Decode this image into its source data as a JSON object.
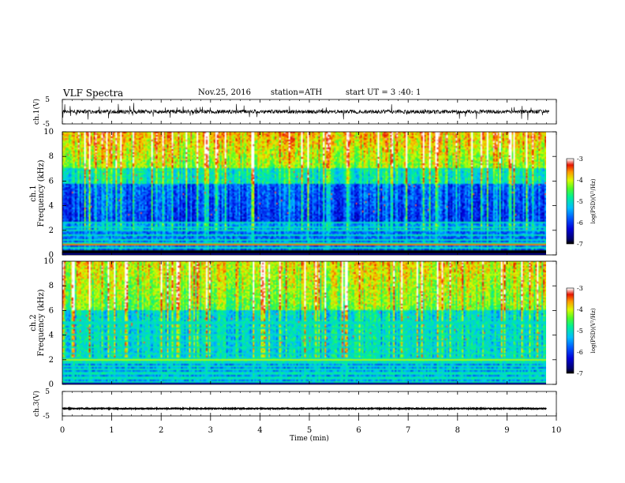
{
  "header": {
    "title": "VLF  Spectra",
    "date": "Nov.25, 2016",
    "station": "station=ATH",
    "start": "start  UT  =    3  :40: 1"
  },
  "chart_data": [
    {
      "type": "line",
      "name": "ch1-waveform",
      "ylabel": "ch.1(V)",
      "ylim": [
        -5,
        5
      ],
      "yticks": [
        "5",
        "-5"
      ],
      "xlim": [
        0,
        10
      ],
      "baseline": 0
    },
    {
      "type": "heatmap",
      "name": "ch1-spectrogram",
      "ylabel": "ch.1\nFrequency (kHz)",
      "ylabel_lines": [
        "ch.1",
        "Frequency (kHz)"
      ],
      "ylim": [
        0,
        10
      ],
      "yticks": [
        "0",
        "2",
        "4",
        "6",
        "8",
        "10"
      ],
      "xlim": [
        0,
        9.8
      ],
      "colorbar": {
        "label": "log(PSD)(V²/Hz)",
        "range": [
          -7,
          -3
        ],
        "ticks": [
          "-3",
          "-4",
          "-5",
          "-6",
          "-7"
        ]
      }
    },
    {
      "type": "heatmap",
      "name": "ch2-spectrogram",
      "ylabel": "ch.2\nFrequency (kHz)",
      "ylabel_lines": [
        "ch.2",
        "Frequency (kHz)"
      ],
      "ylim": [
        0,
        10
      ],
      "yticks": [
        "0",
        "2",
        "4",
        "6",
        "8",
        "10"
      ],
      "xlim": [
        0,
        9.8
      ],
      "colorbar": {
        "label": "log(PSD)(V²/Hz)",
        "range": [
          -7,
          -3
        ],
        "ticks": [
          "-3",
          "-4",
          "-5",
          "-6",
          "-7"
        ]
      }
    },
    {
      "type": "line",
      "name": "ch3-waveform",
      "ylabel": "ch.3(V)",
      "ylim": [
        -5,
        5
      ],
      "yticks": [
        "5",
        "-5"
      ],
      "xlim": [
        0,
        10
      ],
      "xlabel": "Time  (min)",
      "xticks": [
        "0",
        "1",
        "2",
        "3",
        "4",
        "5",
        "6",
        "7",
        "8",
        "9",
        "10"
      ],
      "baseline": -2
    }
  ]
}
